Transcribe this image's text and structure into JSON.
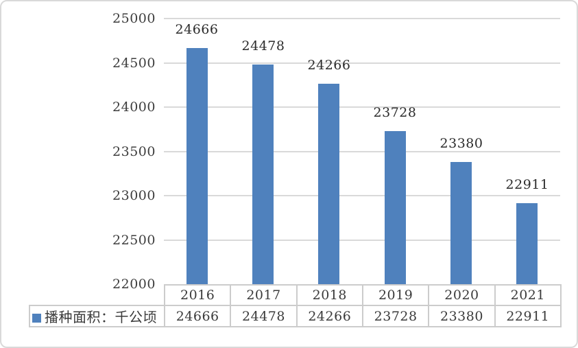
{
  "window": {
    "background": "#ffffff",
    "border_color": "#d9d9d9"
  },
  "chart_data": {
    "type": "bar",
    "title": "",
    "categories": [
      "2016",
      "2017",
      "2018",
      "2019",
      "2020",
      "2021"
    ],
    "series": [
      {
        "name": "播种面积：千公顷",
        "values": [
          24666,
          24478,
          24266,
          23728,
          23380,
          22911
        ]
      }
    ],
    "data_labels": [
      "24666",
      "24478",
      "24266",
      "23728",
      "23380",
      "22911"
    ],
    "ylim": [
      22000,
      25000
    ],
    "yticks": [
      22000,
      22500,
      23000,
      23500,
      24000,
      24500,
      25000
    ],
    "grid": true,
    "legend_position": "bottom-left",
    "legend_label": "播种面积：千公顷",
    "colors": {
      "bar": "#4f81bd",
      "grid": "#d9d9d9",
      "table_border": "#cccccc",
      "tick_text": "#3d3d3d",
      "label_text": "#2b2b2b",
      "table_text": "#3a3a3a"
    }
  },
  "table": {
    "header_row": [
      "2016",
      "2017",
      "2018",
      "2019",
      "2020",
      "2021"
    ],
    "value_row": [
      "24666",
      "24478",
      "24266",
      "23728",
      "23380",
      "22911"
    ],
    "legend_cell": "播种面积：千公顷"
  }
}
